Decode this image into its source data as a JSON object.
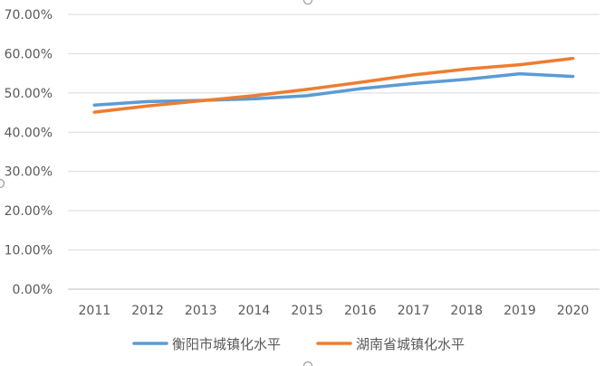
{
  "chart_data": {
    "type": "line",
    "categories": [
      "2011",
      "2012",
      "2013",
      "2014",
      "2015",
      "2016",
      "2017",
      "2018",
      "2019",
      "2020"
    ],
    "series": [
      {
        "name": "衡阳市城镇化水平",
        "color": "#5b9bd5",
        "values": [
          46.9,
          47.8,
          48.1,
          48.5,
          49.3,
          51.1,
          52.4,
          53.5,
          54.9,
          54.2
        ]
      },
      {
        "name": "湖南省城镇化水平",
        "color": "#ed7d31",
        "values": [
          45.1,
          46.7,
          48.0,
          49.3,
          50.9,
          52.7,
          54.6,
          56.1,
          57.2,
          58.8
        ]
      }
    ],
    "ylim": [
      0,
      70
    ],
    "yticks": [
      "0.00%",
      "10.00%",
      "20.00%",
      "30.00%",
      "40.00%",
      "50.00%",
      "60.00%",
      "70.00%"
    ],
    "title": "",
    "xlabel": "",
    "ylabel": "",
    "grid": true,
    "legend": "bottom"
  }
}
